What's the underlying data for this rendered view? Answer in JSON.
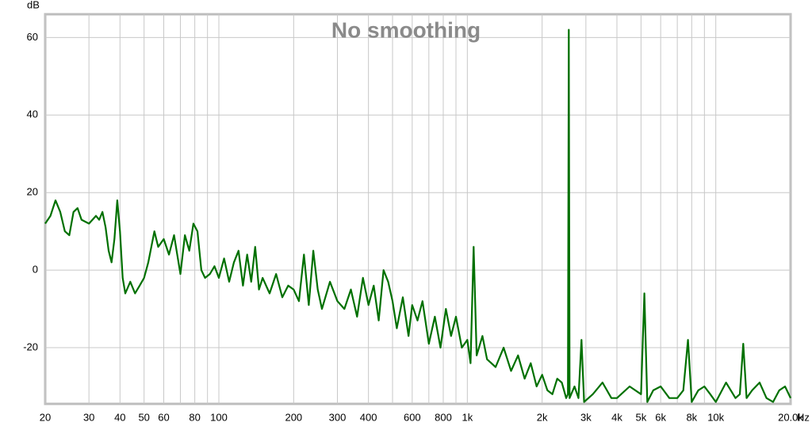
{
  "chart_data": {
    "type": "line",
    "title": "No smoothing",
    "y_unit": "dB",
    "x_unit": "Hz",
    "xscale": "log",
    "grid": true,
    "color": "#007000",
    "xlim": [
      20,
      20000
    ],
    "ylim": [
      -34.5,
      66
    ],
    "yticks": [
      -20,
      0,
      20,
      40,
      60
    ],
    "xticks": [
      20,
      30,
      40,
      50,
      60,
      80,
      100,
      200,
      300,
      400,
      600,
      800,
      {
        "value": 1000,
        "label": "1k"
      },
      {
        "value": 2000,
        "label": "2k"
      },
      {
        "value": 3000,
        "label": "3k"
      },
      {
        "value": 4000,
        "label": "4k"
      },
      {
        "value": 5000,
        "label": "5k"
      },
      {
        "value": 6000,
        "label": "6k"
      },
      {
        "value": 8000,
        "label": "8k"
      },
      {
        "value": 10000,
        "label": "10k"
      },
      {
        "value": 20000,
        "label": "20.0k"
      }
    ],
    "xgrid_minor": [
      70,
      90,
      500,
      700,
      900,
      7000,
      9000
    ],
    "x": [
      20,
      21,
      22,
      23,
      24,
      25,
      26,
      27,
      28,
      30,
      32,
      33,
      34,
      35,
      36,
      37,
      38,
      39,
      40,
      41,
      42,
      44,
      46,
      48,
      50,
      52,
      55,
      57,
      60,
      63,
      66,
      70,
      73,
      76,
      79,
      82,
      85,
      88,
      92,
      96,
      100,
      105,
      110,
      115,
      120,
      125,
      130,
      135,
      140,
      145,
      150,
      160,
      170,
      180,
      190,
      200,
      210,
      220,
      230,
      240,
      250,
      260,
      280,
      300,
      320,
      340,
      360,
      380,
      400,
      420,
      440,
      460,
      480,
      500,
      520,
      550,
      580,
      600,
      630,
      660,
      700,
      740,
      780,
      820,
      860,
      900,
      950,
      1000,
      1030,
      1060,
      1090,
      1150,
      1200,
      1300,
      1400,
      1500,
      1600,
      1700,
      1800,
      1900,
      2000,
      2100,
      2200,
      2300,
      2400,
      2500,
      2540,
      2560,
      2580,
      2700,
      2800,
      2880,
      2950,
      3200,
      3500,
      3800,
      4000,
      4500,
      5000,
      5160,
      5300,
      5600,
      6000,
      6500,
      7000,
      7400,
      7730,
      8000,
      8500,
      9000,
      9500,
      10000,
      11000,
      12000,
      12500,
      12900,
      13300,
      14000,
      15000,
      16000,
      17000,
      18000,
      19000,
      20000
    ],
    "values": [
      12,
      14,
      18,
      15,
      10,
      9,
      15,
      16,
      13,
      12,
      14,
      13,
      15,
      11,
      5,
      2,
      8,
      18,
      10,
      -2,
      -6,
      -3,
      -6,
      -4,
      -2,
      2,
      10,
      6,
      8,
      4,
      9,
      -1,
      9,
      5,
      12,
      10,
      0,
      -2,
      -1,
      1,
      -2,
      3,
      -3,
      2,
      5,
      -4,
      4,
      -3,
      6,
      -5,
      -2,
      -6,
      -1,
      -7,
      -4,
      -5,
      -8,
      4,
      -9,
      5,
      -5,
      -10,
      -3,
      -8,
      -10,
      -5,
      -12,
      -2,
      -9,
      -4,
      -13,
      0,
      -3,
      -8,
      -15,
      -7,
      -17,
      -9,
      -13,
      -8,
      -19,
      -12,
      -20,
      -10,
      -17,
      -12,
      -20,
      -18,
      -24,
      6,
      -22,
      -17,
      -23,
      -25,
      -20,
      -26,
      -22,
      -28,
      -24,
      -30,
      -27,
      -31,
      -32,
      -28,
      -29,
      -33,
      -32,
      62,
      -33,
      -30,
      -33,
      -18,
      -34,
      -32,
      -29,
      -33,
      -33,
      -30,
      -32,
      -6,
      -34,
      -31,
      -30,
      -33,
      -33,
      -31,
      -18,
      -34,
      -31,
      -30,
      -32,
      -34,
      -29,
      -33,
      -32,
      -19,
      -33,
      -31,
      -29,
      -33,
      -34,
      -31,
      -30,
      -33
    ]
  }
}
